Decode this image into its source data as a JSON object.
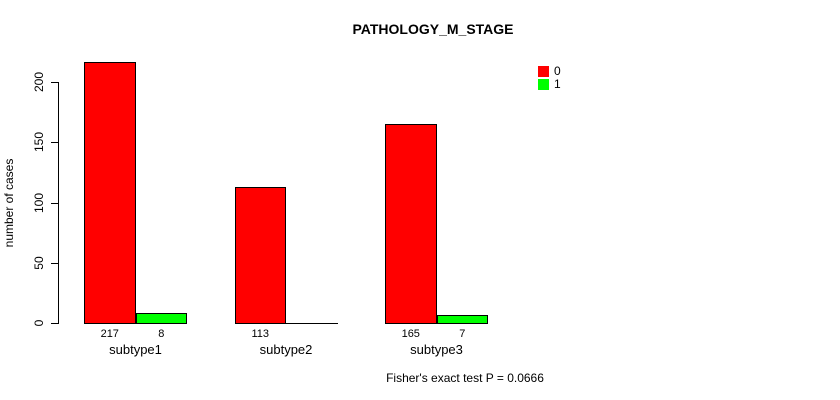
{
  "chart_data": {
    "type": "bar",
    "title": "PATHOLOGY_M_STAGE",
    "ylabel": "number of cases",
    "xlabel": "",
    "categories": [
      "subtype1",
      "subtype2",
      "subtype3"
    ],
    "series": [
      {
        "name": "0",
        "color": "#ff0000",
        "values": [
          217,
          113,
          165
        ]
      },
      {
        "name": "1",
        "color": "#00ff00",
        "values": [
          8,
          0,
          7
        ]
      }
    ],
    "value_labels": [
      [
        "217",
        "8"
      ],
      [
        "113",
        ""
      ],
      [
        "165",
        "7"
      ]
    ],
    "yticks": [
      0,
      50,
      100,
      150,
      200
    ],
    "ylim": [
      0,
      225
    ],
    "grid": false,
    "legend_position": "top-right",
    "legend_entries": [
      "0",
      "1"
    ],
    "footer": "Fisher's exact test P = 0.0666"
  }
}
